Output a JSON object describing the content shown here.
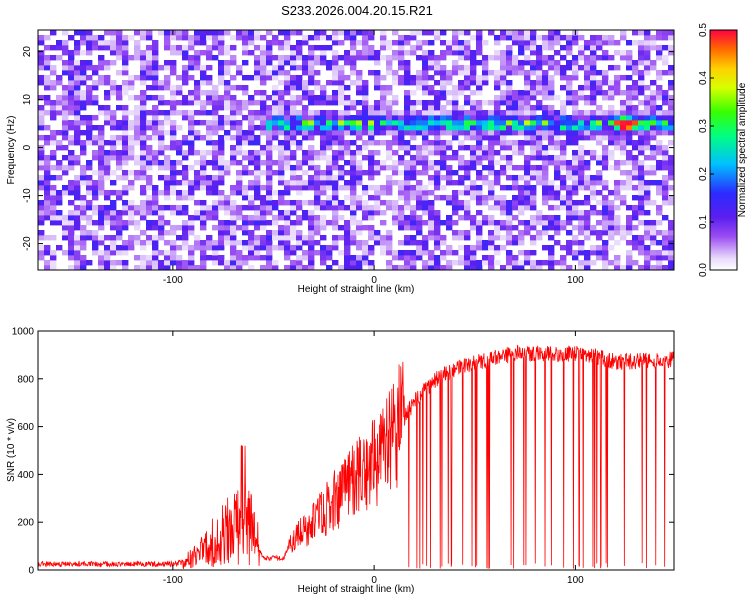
{
  "title": "S233.2026.004.20.15.R21",
  "chart_data": [
    {
      "type": "heatmap",
      "xlabel": "Height of straight line (km)",
      "ylabel": "Frequency (Hz)",
      "xlim": [
        -167,
        149
      ],
      "ylim": [
        -25.5,
        24.5
      ],
      "x_ticks": [
        -100,
        0,
        100
      ],
      "y_ticks": [
        -20,
        -10,
        0,
        10,
        20
      ],
      "colorbar": {
        "label": "Normalized spectral amplitude",
        "range": [
          0.0,
          0.5
        ],
        "ticks": [
          0.0,
          0.1,
          0.2,
          0.3,
          0.4,
          0.5
        ],
        "colors": [
          "#ffffff",
          "#e8d8fb",
          "#9a4cf2",
          "#5a1ff0",
          "#2b2bff",
          "#00bfff",
          "#00ff80",
          "#39ff00",
          "#d8ff00",
          "#ffd000",
          "#ff6a00",
          "#ff0040"
        ]
      },
      "ridge": {
        "x_start": -55,
        "x_end": 149,
        "frequency": 5,
        "peak_amplitude": 0.5,
        "peak_x": 125
      }
    },
    {
      "type": "line",
      "xlabel": "Height of straight line (km)",
      "ylabel": "SNR (10 * v/v)",
      "xlim": [
        -167,
        149
      ],
      "ylim": [
        0,
        1000
      ],
      "x_ticks": [
        -100,
        0,
        100
      ],
      "y_ticks": [
        0,
        200,
        400,
        600,
        800,
        1000
      ],
      "color": "#ff0000",
      "profile": {
        "x": [
          -167,
          -100,
          -90,
          -80,
          -70,
          -62,
          -55,
          -45,
          -40,
          -30,
          -20,
          -10,
          0,
          10,
          20,
          30,
          40,
          50,
          60,
          70,
          80,
          90,
          100,
          110,
          120,
          130,
          140,
          149
        ],
        "y": [
          25,
          25,
          40,
          95,
          145,
          150,
          50,
          50,
          130,
          195,
          290,
          375,
          440,
          560,
          705,
          795,
          840,
          865,
          890,
          905,
          905,
          900,
          910,
          895,
          870,
          875,
          880,
          880
        ]
      }
    }
  ]
}
